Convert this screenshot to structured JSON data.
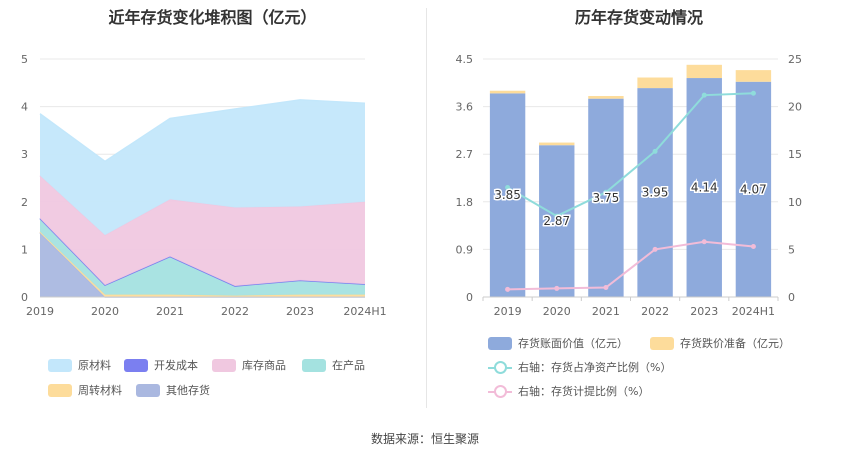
{
  "source": "数据来源：恒生聚源",
  "chart_data": [
    {
      "type": "area",
      "stacked": true,
      "title": "近年存货变化堆积图（亿元）",
      "categories": [
        "2019",
        "2020",
        "2021",
        "2022",
        "2023",
        "2024H1"
      ],
      "ylim": [
        0,
        5
      ],
      "yticks": [
        0,
        1,
        2,
        3,
        4,
        5
      ],
      "grid": true,
      "legend_position": "bottom",
      "series": [
        {
          "name": "其他存货",
          "color": "#aab8e0",
          "values": [
            1.35,
            0.0,
            0.0,
            0.0,
            0.0,
            0.0
          ]
        },
        {
          "name": "周转材料",
          "color": "#fddc9b",
          "values": [
            0.02,
            0.05,
            0.05,
            0.03,
            0.05,
            0.05
          ]
        },
        {
          "name": "在产品",
          "color": "#a4e2e0",
          "values": [
            0.28,
            0.2,
            0.8,
            0.2,
            0.3,
            0.22
          ]
        },
        {
          "name": "开发成本",
          "color": "#7b7ff0",
          "values": [
            0.0,
            0.0,
            0.0,
            0.0,
            0.0,
            0.0
          ]
        },
        {
          "name": "库存商品",
          "color": "#f0c8e0",
          "values": [
            0.9,
            1.05,
            1.2,
            1.65,
            1.55,
            1.73
          ]
        },
        {
          "name": "原材料",
          "color": "#c3e7fb",
          "values": [
            1.3,
            1.55,
            1.7,
            2.07,
            2.24,
            2.07
          ]
        }
      ],
      "legend_order": [
        "原材料",
        "开发成本",
        "库存商品",
        "在产品",
        "周转材料",
        "其他存货"
      ]
    },
    {
      "type": "bar",
      "title": "历年存货变动情况",
      "categories": [
        "2019",
        "2020",
        "2021",
        "2022",
        "2023",
        "2024H1"
      ],
      "ylim": [
        0,
        4.5
      ],
      "yticks": [
        "0",
        "0.9",
        "1.8",
        "2.7",
        "3.6",
        "4.5"
      ],
      "y2lim": [
        0,
        25
      ],
      "y2ticks": [
        "0",
        "5",
        "10",
        "15",
        "20",
        "25"
      ],
      "grid": true,
      "legend_position": "bottom",
      "series": [
        {
          "name": "存货账面价值（亿元）",
          "kind": "bar",
          "color": "#8eaadc",
          "values": [
            3.85,
            2.87,
            3.75,
            3.95,
            4.14,
            4.07
          ],
          "labels": [
            "3.85",
            "2.87",
            "3.75",
            "3.95",
            "4.14",
            "4.07"
          ]
        },
        {
          "name": "存货跌价准备（亿元）",
          "kind": "bar",
          "color": "#fddc9b",
          "values": [
            0.05,
            0.05,
            0.05,
            0.2,
            0.25,
            0.22
          ]
        },
        {
          "name": "右轴：存货占净资产比例（%）",
          "kind": "line",
          "axis": "right",
          "color": "#8fdcdb",
          "values": [
            11.5,
            8.5,
            11.0,
            15.3,
            21.2,
            21.4
          ]
        },
        {
          "name": "右轴：存货计提比例（%）",
          "kind": "line",
          "axis": "right",
          "color": "#f2bcd8",
          "values": [
            0.8,
            0.9,
            1.0,
            5.0,
            5.8,
            5.3
          ]
        }
      ]
    }
  ]
}
